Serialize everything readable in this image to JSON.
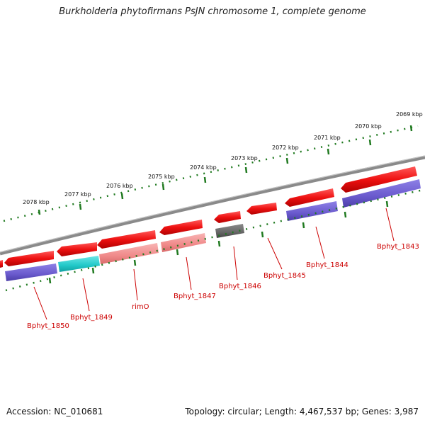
{
  "title": "Burkholderia phytofirmans PsJN chromosome 1, complete genome",
  "footer": {
    "accession": "Accession: NC_010681",
    "topology": "Topology: circular; Length: 4,467,537 bp; Genes: 3,987"
  },
  "ticks": [
    "2078 kbp",
    "2077 kbp",
    "2076 kbp",
    "2075 kbp",
    "2074 kbp",
    "2073 kbp",
    "2072 kbp",
    "2071 kbp",
    "2070 kbp",
    "2069 kbp"
  ],
  "genes": [
    "Bphyt_1850",
    "Bphyt_1849",
    "rimO",
    "Bphyt_1847",
    "Bphyt_1846",
    "Bphyt_1845",
    "Bphyt_1844",
    "Bphyt_1843"
  ],
  "colors": {
    "forward_strand": "#e01010",
    "cds_blue": "#6a5acd",
    "cds_cyan": "#20c8c8",
    "cds_pink": "#f08a8a",
    "cds_gray": "#666666",
    "tick_green": "#207a20",
    "backbone": "#8a8a8a",
    "label_red": "#cc0000"
  }
}
